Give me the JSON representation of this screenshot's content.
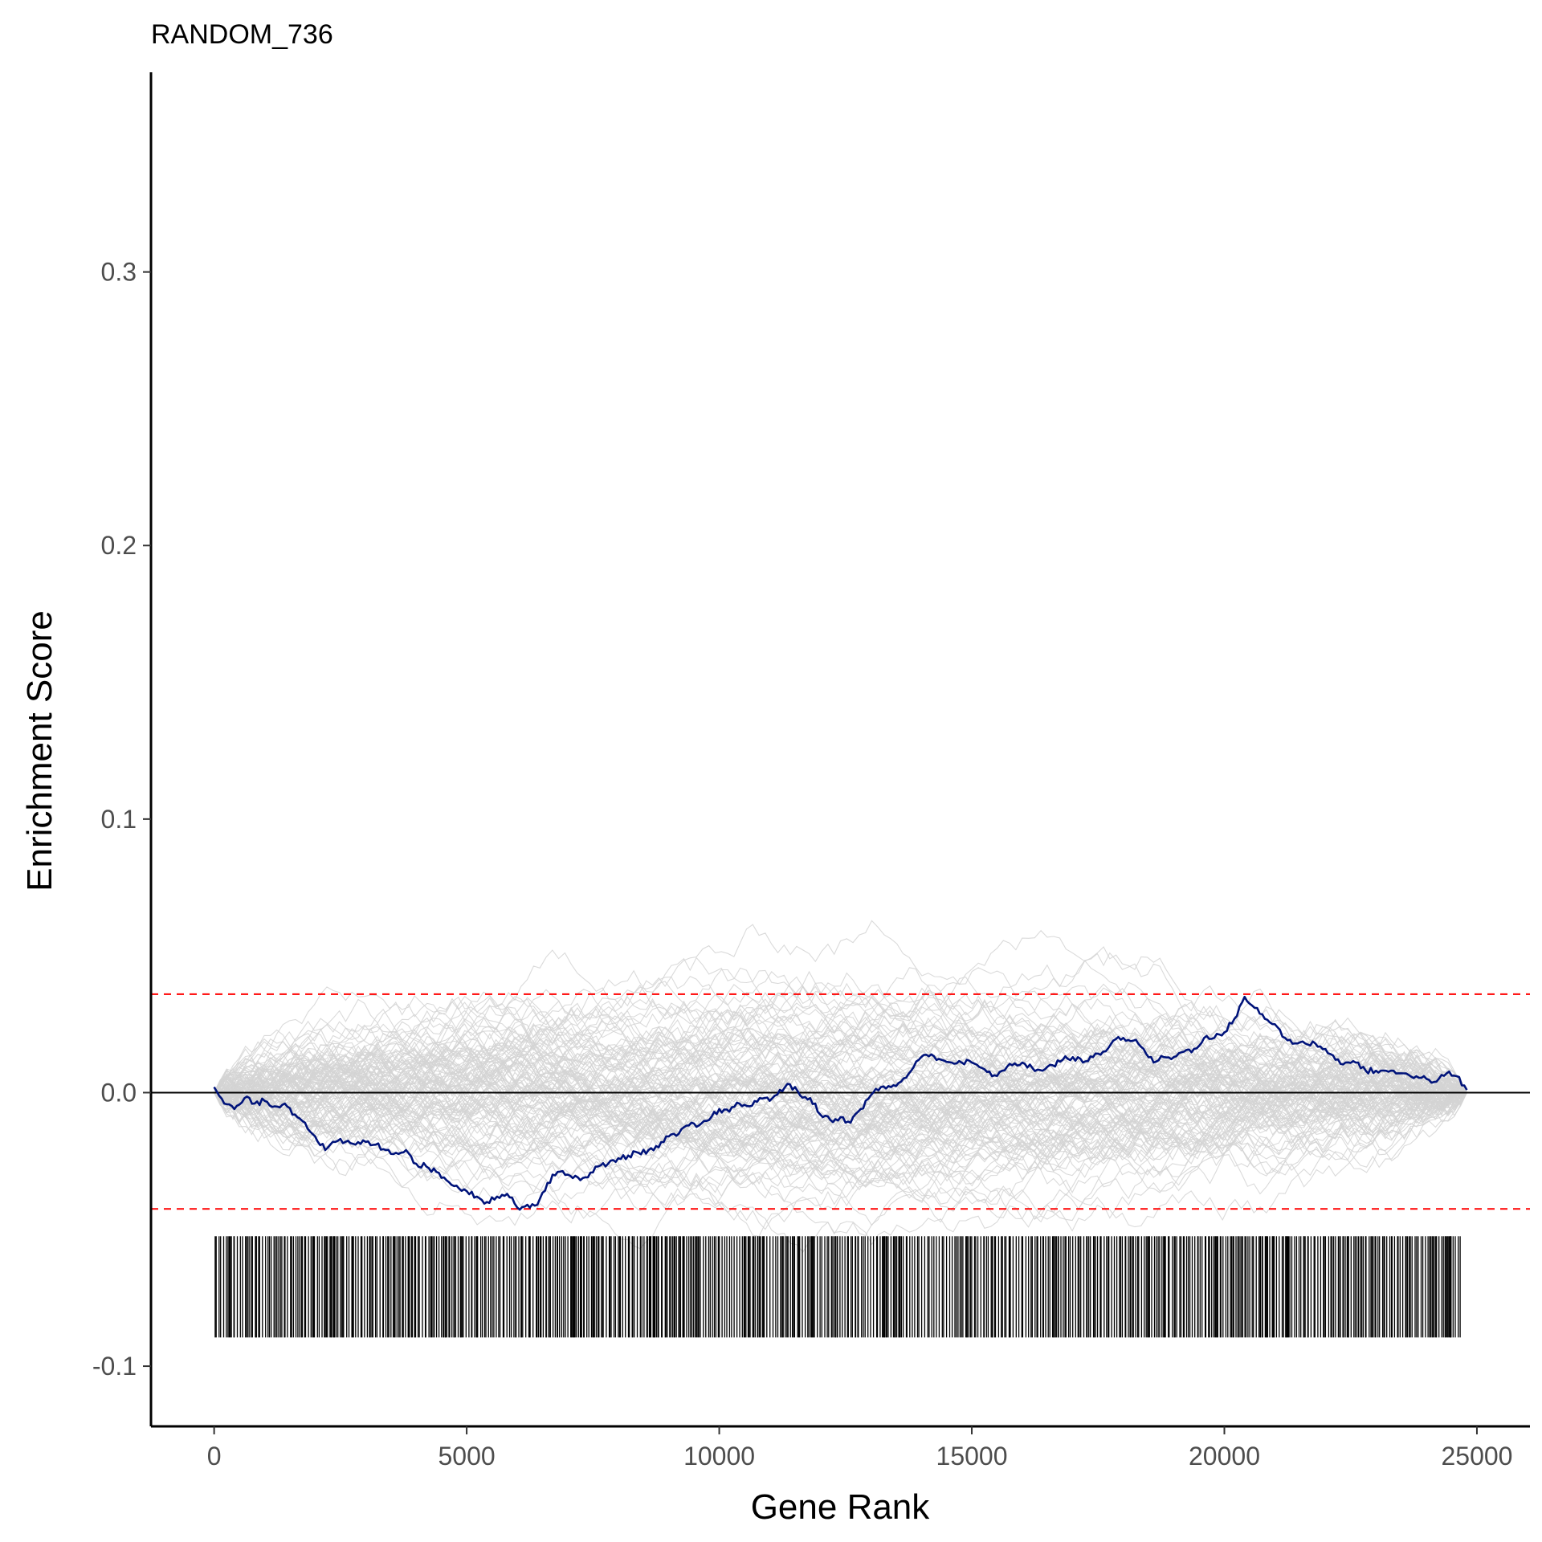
{
  "chart_data": {
    "type": "line",
    "title": "RANDOM_736",
    "xlabel": "Gene Rank",
    "ylabel": "Enrichment Score",
    "xlim": [
      -1250,
      26050
    ],
    "ylim": [
      -0.122,
      0.373
    ],
    "x_ticks": [
      0,
      5000,
      10000,
      15000,
      20000,
      25000
    ],
    "x_tick_labels": [
      "0",
      "5000",
      "10000",
      "15000",
      "20000",
      "25000"
    ],
    "y_ticks": [
      -0.1,
      0.0,
      0.1,
      0.2,
      0.3
    ],
    "y_tick_labels": [
      "-0.1",
      "0.0",
      "0.1",
      "0.2",
      "0.3"
    ],
    "grid": false,
    "zero_line": 0.0,
    "thresholds": {
      "upper": 0.036,
      "lower": -0.0425
    },
    "hit_ticks_range": {
      "y_top": -0.0525,
      "y_bottom": -0.0895
    },
    "colors": {
      "main_line": "#00137a",
      "random_lines": "#d3d3d3",
      "threshold": "#ff0000",
      "ticks": "#000000",
      "axis": "#000000"
    },
    "series": [
      {
        "x": [
          0,
          200,
          400,
          600,
          800,
          1000,
          1200,
          1400,
          1600,
          1800,
          2000,
          2200,
          2400,
          2600,
          2800,
          3000,
          3200,
          3400,
          3600,
          3800,
          4000,
          4200,
          4400,
          4600,
          4800,
          5000,
          5200,
          5400,
          5600,
          5800,
          6000,
          6200,
          6400,
          6600,
          6800,
          7000,
          7200,
          7400,
          7600,
          7800,
          8000,
          8200,
          8400,
          8600,
          8800,
          9000,
          9200,
          9400,
          9600,
          9800,
          10000,
          10200,
          10400,
          10600,
          10800,
          11000,
          11200,
          11400,
          11600,
          11800,
          12000,
          12200,
          12400,
          12600,
          12800,
          13000,
          13200,
          13400,
          13600,
          13800,
          14000,
          14200,
          14400,
          14600,
          14800,
          15000,
          15200,
          15400,
          15600,
          15800,
          16000,
          16200,
          16400,
          16600,
          16800,
          17000,
          17200,
          17400,
          17600,
          17800,
          18000,
          18200,
          18400,
          18600,
          18800,
          19000,
          19200,
          19400,
          19600,
          19800,
          20000,
          20200,
          20400,
          20600,
          20800,
          21000,
          21200,
          21400,
          21600,
          21800,
          22000,
          22200,
          22400,
          22600,
          22800,
          23000,
          23200,
          23400,
          23600,
          23800,
          24000,
          24200,
          24400,
          24600,
          24800
        ],
        "y": [
          0.002,
          -0.004,
          -0.006,
          -0.002,
          -0.004,
          -0.003,
          -0.005,
          -0.004,
          -0.008,
          -0.011,
          -0.016,
          -0.021,
          -0.018,
          -0.018,
          -0.019,
          -0.018,
          -0.019,
          -0.021,
          -0.022,
          -0.021,
          -0.026,
          -0.027,
          -0.029,
          -0.032,
          -0.034,
          -0.036,
          -0.038,
          -0.04,
          -0.038,
          -0.037,
          -0.042,
          -0.041,
          -0.041,
          -0.033,
          -0.029,
          -0.03,
          -0.031,
          -0.031,
          -0.027,
          -0.026,
          -0.024,
          -0.023,
          -0.022,
          -0.021,
          -0.02,
          -0.016,
          -0.015,
          -0.012,
          -0.012,
          -0.01,
          -0.006,
          -0.007,
          -0.004,
          -0.005,
          -0.002,
          -0.003,
          0.001,
          0.003,
          -0.001,
          -0.002,
          -0.008,
          -0.01,
          -0.009,
          -0.011,
          -0.006,
          -0.001,
          0.002,
          0.002,
          0.004,
          0.008,
          0.013,
          0.014,
          0.012,
          0.011,
          0.011,
          0.011,
          0.009,
          0.006,
          0.008,
          0.01,
          0.011,
          0.009,
          0.008,
          0.01,
          0.012,
          0.013,
          0.011,
          0.013,
          0.015,
          0.019,
          0.02,
          0.019,
          0.016,
          0.011,
          0.013,
          0.013,
          0.015,
          0.016,
          0.02,
          0.02,
          0.022,
          0.027,
          0.035,
          0.031,
          0.027,
          0.025,
          0.02,
          0.018,
          0.018,
          0.018,
          0.016,
          0.012,
          0.011,
          0.011,
          0.008,
          0.008,
          0.008,
          0.007,
          0.007,
          0.006,
          0.005,
          0.004,
          0.007,
          0.006,
          0.001
        ]
      }
    ]
  }
}
